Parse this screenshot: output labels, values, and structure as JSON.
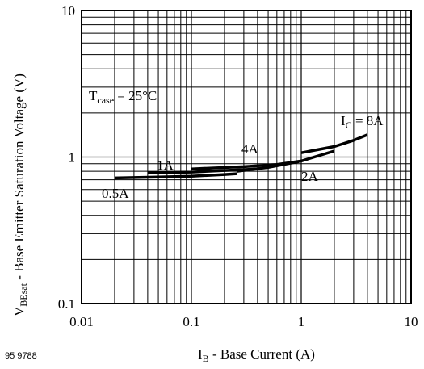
{
  "figure_code": "95 9788",
  "chart_data": {
    "type": "line",
    "x_scale": "log",
    "y_scale": "log",
    "xlim": [
      0.01,
      10
    ],
    "ylim": [
      0.1,
      10
    ],
    "grid": true,
    "x_ticks": [
      "0.01",
      "0.1",
      "1",
      "10"
    ],
    "y_ticks": [
      "0.1",
      "1",
      "10"
    ],
    "xlabel": {
      "main": "I",
      "sub": "B",
      "rest": " - Base Current (A)"
    },
    "ylabel": {
      "main": "V",
      "sub": "BEsat",
      "rest": " - Base Emitter Saturation Voltage (V)"
    },
    "condition": {
      "main": "T",
      "sub": "case",
      "rest": " = 25°C"
    },
    "series": [
      {
        "name": "0.5A",
        "label": {
          "main": "0.5A"
        },
        "x": [
          0.02,
          0.05,
          0.1,
          0.2,
          0.26
        ],
        "y": [
          0.72,
          0.73,
          0.74,
          0.76,
          0.77
        ]
      },
      {
        "name": "1A",
        "label": {
          "main": "1A"
        },
        "x": [
          0.04,
          0.1,
          0.2,
          0.4
        ],
        "y": [
          0.78,
          0.79,
          0.81,
          0.83
        ]
      },
      {
        "name": "2A",
        "label": {
          "main": "2A"
        },
        "x": [
          0.26,
          0.5,
          0.95
        ],
        "y": [
          0.8,
          0.85,
          0.93
        ]
      },
      {
        "name": "4A",
        "label": {
          "main": "4A"
        },
        "x": [
          0.1,
          0.3,
          0.6,
          1.0,
          2.0
        ],
        "y": [
          0.83,
          0.86,
          0.89,
          0.94,
          1.1
        ]
      },
      {
        "name": "8A",
        "label": {
          "main": "I",
          "sub": "C",
          "rest": " = 8A"
        },
        "x": [
          1.0,
          2.0,
          3.0,
          4.0
        ],
        "y": [
          1.07,
          1.18,
          1.3,
          1.42
        ]
      }
    ]
  }
}
